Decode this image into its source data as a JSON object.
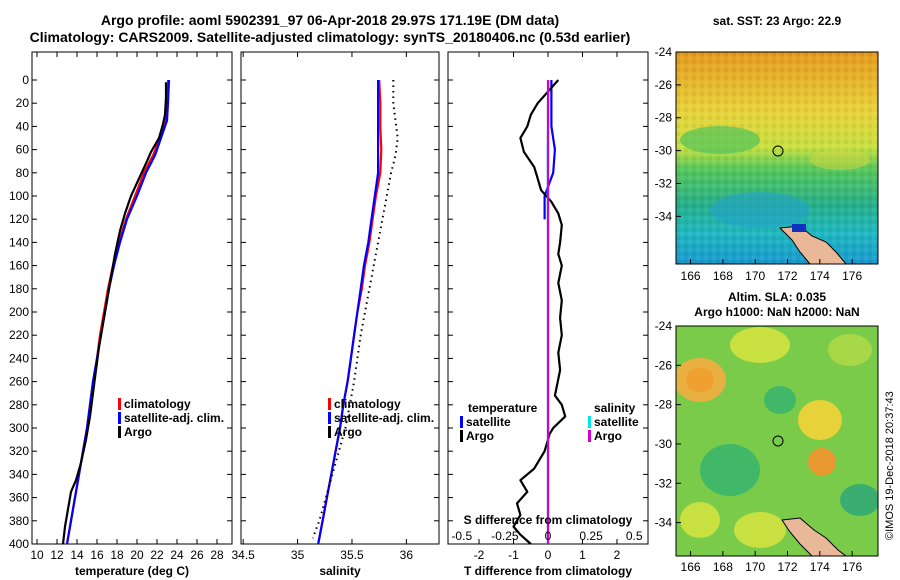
{
  "header": {
    "line1": "Argo profile: aoml 5902391_97 06-Apr-2018 29.97S 171.19E (DM data)",
    "line2": "Climatology: CARS2009. Satellite-adjusted climatology: synTS_20180406.nc (0.53d earlier)"
  },
  "maps": {
    "sst_title": "sat. SST: 23 Argo: 22.9",
    "sla_title_1": "Altim. SLA: 0.035",
    "sla_title_2": "Argo h1000: NaN h2000: NaN",
    "credit": "©IMOS 19-Dec-2018 20:37:43"
  },
  "colors": {
    "climatology": "#ff0000",
    "satellite_adj": "#0000ff",
    "argo": "#000000",
    "s_satellite": "#00e5e5",
    "s_argo": "#d000d0"
  },
  "chart_data": [
    {
      "type": "line",
      "id": "temperature",
      "xlabel": "temperature (deg C)",
      "ylabel": "",
      "xlim": [
        9.5,
        29.5
      ],
      "ylim": [
        400,
        0
      ],
      "xticks": [
        10,
        12,
        14,
        16,
        18,
        20,
        22,
        24,
        26,
        28
      ],
      "yticks": [
        0,
        20,
        40,
        60,
        80,
        100,
        120,
        140,
        160,
        180,
        200,
        220,
        240,
        260,
        280,
        300,
        320,
        340,
        360,
        380,
        400
      ],
      "legend": [
        "climatology",
        "satellite-adj. clim.",
        "Argo"
      ],
      "series": [
        {
          "name": "climatology",
          "color": "#ff0000",
          "points": [
            [
              23.1,
              0
            ],
            [
              23.0,
              20
            ],
            [
              22.9,
              35
            ],
            [
              22.3,
              50
            ],
            [
              21.6,
              65
            ],
            [
              20.7,
              80
            ],
            [
              19.8,
              100
            ],
            [
              18.9,
              120
            ],
            [
              18.2,
              140
            ],
            [
              17.6,
              160
            ],
            [
              17.1,
              180
            ],
            [
              16.7,
              200
            ],
            [
              16.3,
              220
            ],
            [
              16.0,
              240
            ],
            [
              15.6,
              260
            ],
            [
              15.3,
              280
            ],
            [
              15.0,
              300
            ],
            [
              14.6,
              320
            ],
            [
              14.2,
              340
            ],
            [
              13.8,
              360
            ],
            [
              13.4,
              380
            ],
            [
              13.0,
              400
            ]
          ]
        },
        {
          "name": "satellite-adj. clim.",
          "color": "#0000ff",
          "points": [
            [
              23.2,
              0
            ],
            [
              23.1,
              20
            ],
            [
              23.0,
              35
            ],
            [
              22.4,
              50
            ],
            [
              21.8,
              65
            ],
            [
              20.9,
              80
            ],
            [
              20.0,
              100
            ],
            [
              19.0,
              120
            ],
            [
              18.3,
              140
            ],
            [
              17.7,
              160
            ],
            [
              17.2,
              180
            ],
            [
              16.8,
              200
            ],
            [
              16.4,
              220
            ],
            [
              16.0,
              240
            ],
            [
              15.6,
              260
            ],
            [
              15.3,
              280
            ],
            [
              15.0,
              300
            ],
            [
              14.6,
              320
            ],
            [
              14.2,
              340
            ],
            [
              13.8,
              360
            ],
            [
              13.4,
              380
            ],
            [
              13.0,
              400
            ]
          ]
        },
        {
          "name": "Argo",
          "color": "#000000",
          "points": [
            [
              22.9,
              2
            ],
            [
              22.9,
              15
            ],
            [
              22.8,
              30
            ],
            [
              22.6,
              38
            ],
            [
              22.2,
              50
            ],
            [
              21.4,
              62
            ],
            [
              21.0,
              70
            ],
            [
              20.2,
              85
            ],
            [
              19.4,
              100
            ],
            [
              18.8,
              115
            ],
            [
              18.3,
              130
            ],
            [
              17.8,
              150
            ],
            [
              17.4,
              170
            ],
            [
              17.0,
              190
            ],
            [
              16.6,
              210
            ],
            [
              16.2,
              230
            ],
            [
              15.9,
              250
            ],
            [
              15.6,
              270
            ],
            [
              15.3,
              290
            ],
            [
              14.9,
              310
            ],
            [
              14.4,
              330
            ],
            [
              13.9,
              345
            ],
            [
              13.4,
              355
            ],
            [
              13.1,
              370
            ],
            [
              12.8,
              385
            ],
            [
              12.6,
              400
            ]
          ]
        }
      ]
    },
    {
      "type": "line",
      "id": "salinity",
      "xlabel": "salinity",
      "ylabel": "",
      "xlim": [
        34.48,
        36.3
      ],
      "ylim": [
        400,
        0
      ],
      "xticks": [
        34.5,
        35,
        35.5,
        36
      ],
      "xtick_labels": [
        "34.5",
        "35",
        "35.5",
        "36"
      ],
      "legend": [
        "climatology",
        "satellite-adj. clim.",
        "Argo"
      ],
      "series": [
        {
          "name": "climatology",
          "color": "#ff0000",
          "points": [
            [
              35.75,
              0
            ],
            [
              35.76,
              20
            ],
            [
              35.76,
              40
            ],
            [
              35.77,
              60
            ],
            [
              35.76,
              80
            ],
            [
              35.72,
              100
            ],
            [
              35.69,
              120
            ],
            [
              35.66,
              140
            ],
            [
              35.62,
              160
            ],
            [
              35.59,
              180
            ],
            [
              35.55,
              200
            ],
            [
              35.52,
              220
            ],
            [
              35.49,
              240
            ],
            [
              35.46,
              260
            ],
            [
              35.42,
              280
            ],
            [
              35.39,
              300
            ],
            [
              35.35,
              320
            ],
            [
              35.31,
              340
            ],
            [
              35.27,
              360
            ],
            [
              35.23,
              380
            ],
            [
              35.19,
              400
            ]
          ]
        },
        {
          "name": "satellite-adj. clim.",
          "color": "#0000ff",
          "points": [
            [
              35.74,
              0
            ],
            [
              35.74,
              20
            ],
            [
              35.74,
              40
            ],
            [
              35.74,
              60
            ],
            [
              35.74,
              80
            ],
            [
              35.71,
              100
            ],
            [
              35.68,
              120
            ],
            [
              35.65,
              140
            ],
            [
              35.61,
              160
            ],
            [
              35.58,
              180
            ],
            [
              35.55,
              200
            ],
            [
              35.52,
              220
            ],
            [
              35.49,
              240
            ],
            [
              35.46,
              260
            ],
            [
              35.42,
              280
            ],
            [
              35.39,
              300
            ],
            [
              35.35,
              320
            ],
            [
              35.31,
              340
            ],
            [
              35.27,
              360
            ],
            [
              35.23,
              380
            ],
            [
              35.19,
              400
            ]
          ]
        },
        {
          "name": "Argo",
          "color": "#000000",
          "style": "dotted",
          "points": [
            [
              35.88,
              0
            ],
            [
              35.88,
              20
            ],
            [
              35.9,
              35
            ],
            [
              35.92,
              50
            ],
            [
              35.9,
              65
            ],
            [
              35.86,
              80
            ],
            [
              35.82,
              100
            ],
            [
              35.78,
              120
            ],
            [
              35.74,
              140
            ],
            [
              35.7,
              160
            ],
            [
              35.66,
              180
            ],
            [
              35.62,
              200
            ],
            [
              35.58,
              220
            ],
            [
              35.55,
              240
            ],
            [
              35.52,
              260
            ],
            [
              35.48,
              280
            ],
            [
              35.44,
              300
            ],
            [
              35.38,
              320
            ],
            [
              35.32,
              340
            ],
            [
              35.26,
              360
            ],
            [
              35.2,
              380
            ],
            [
              35.14,
              395
            ]
          ]
        }
      ]
    },
    {
      "type": "line",
      "id": "difference",
      "xlabel": "T difference from climatology",
      "x2label": "S difference from climatology",
      "xlim": [
        -2.9,
        2.9
      ],
      "ylim": [
        400,
        0
      ],
      "xticks": [
        -2,
        -1,
        0,
        1,
        2
      ],
      "xtick_labels": [
        "-2",
        "-1",
        "0",
        "1",
        "2"
      ],
      "x2ticks": [
        -0.5,
        -0.25,
        0,
        0.25,
        0.5
      ],
      "x2tick_labels": [
        "-0.5",
        "-0.25",
        "0",
        "0.25",
        "0.5"
      ],
      "legend_temperature": [
        "temperature",
        "satellite",
        "Argo"
      ],
      "legend_salinity": [
        "salinity",
        "satellite",
        "Argo"
      ],
      "series": [
        {
          "name": "T satellite",
          "color": "#0000ff",
          "points": [
            [
              0.1,
              0
            ],
            [
              0.1,
              20
            ],
            [
              0.1,
              40
            ],
            [
              0.2,
              60
            ],
            [
              0.15,
              80
            ],
            [
              -0.1,
              100
            ],
            [
              -0.1,
              120
            ]
          ]
        },
        {
          "name": "T Argo",
          "color": "#000000",
          "points": [
            [
              0.3,
              0
            ],
            [
              -0.3,
              20
            ],
            [
              -0.5,
              30
            ],
            [
              -0.6,
              40
            ],
            [
              -0.8,
              50
            ],
            [
              -0.7,
              62
            ],
            [
              -0.4,
              75
            ],
            [
              -0.3,
              85
            ],
            [
              -0.2,
              95
            ],
            [
              0.1,
              105
            ],
            [
              0.3,
              115
            ],
            [
              0.4,
              125
            ],
            [
              0.35,
              140
            ],
            [
              0.3,
              150
            ],
            [
              0.4,
              160
            ],
            [
              0.3,
              175
            ],
            [
              0.4,
              190
            ],
            [
              0.35,
              205
            ],
            [
              0.4,
              220
            ],
            [
              0.3,
              235
            ],
            [
              0.35,
              250
            ],
            [
              0.25,
              265
            ],
            [
              0.2,
              272
            ],
            [
              0.4,
              280
            ],
            [
              0.5,
              290
            ],
            [
              0.15,
              300
            ],
            [
              0.05,
              305
            ],
            [
              -0.1,
              320
            ],
            [
              -0.4,
              335
            ],
            [
              -0.8,
              345
            ],
            [
              -0.6,
              355
            ],
            [
              -0.9,
              365
            ],
            [
              -0.8,
              375
            ],
            [
              -1.0,
              385
            ],
            [
              -0.8,
              392
            ],
            [
              -0.5,
              400
            ]
          ]
        },
        {
          "name": "S satellite",
          "color": "#00e5e5",
          "points": [
            [
              0.01,
              0
            ],
            [
              0.0,
              20
            ],
            [
              0.0,
              40
            ],
            [
              -0.005,
              60
            ],
            [
              -0.005,
              80
            ],
            [
              -0.002,
              100
            ],
            [
              0.0,
              150
            ],
            [
              0.0,
              200
            ],
            [
              0.0,
              300
            ],
            [
              0.0,
              400
            ]
          ]
        },
        {
          "name": "S Argo",
          "color": "#d000d0",
          "points": [
            [
              0.0,
              0
            ],
            [
              0.0,
              400
            ]
          ]
        }
      ]
    }
  ],
  "map_axes": {
    "x_ticks": [
      166,
      168,
      170,
      172,
      174,
      176
    ],
    "y_ticks": [
      -24,
      -26,
      -28,
      -30,
      -32,
      -34
    ]
  }
}
